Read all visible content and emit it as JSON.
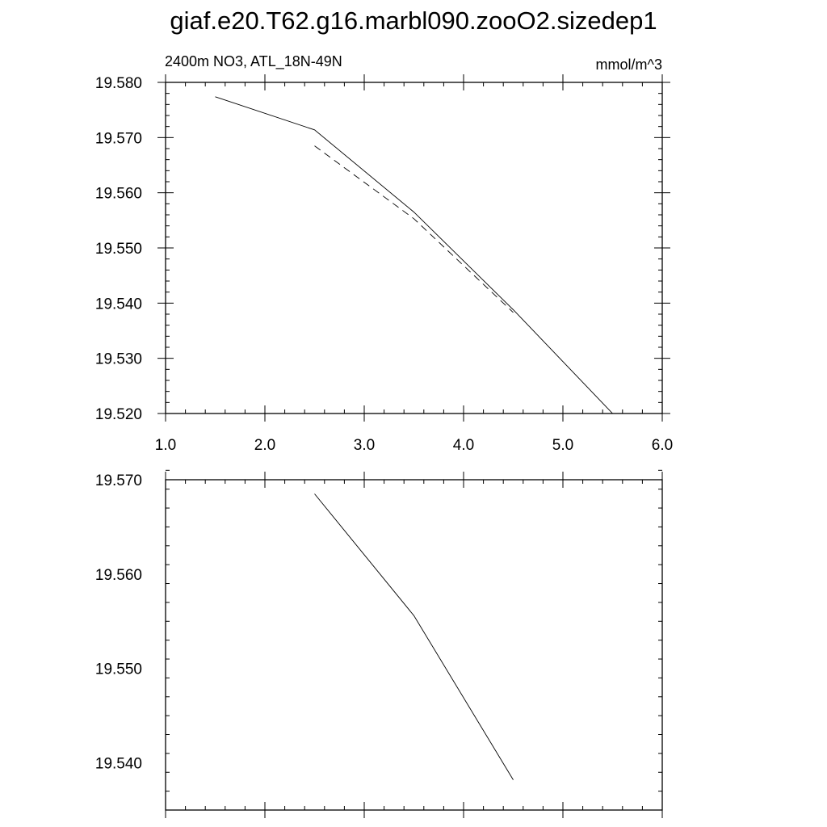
{
  "title": "giaf.e20.T62.g16.marbl090.zooO2.sizedep1",
  "chart_data": [
    {
      "type": "line",
      "left_label": "2400m NO3, ATL_18N-49N",
      "right_label": "mmol/m^3",
      "xlim": [
        1.0,
        6.0
      ],
      "ylim": [
        19.52,
        19.58
      ],
      "xticks": [
        "1.0",
        "2.0",
        "3.0",
        "4.0",
        "5.0",
        "6.0"
      ],
      "yticks": [
        "19.520",
        "19.530",
        "19.540",
        "19.550",
        "19.560",
        "19.570",
        "19.580"
      ],
      "series": [
        {
          "style": "solid",
          "x": [
            1.5,
            2.5,
            3.5,
            4.5,
            5.5
          ],
          "y": [
            19.5774,
            19.5714,
            19.5565,
            19.5388,
            19.52
          ]
        },
        {
          "style": "dashed",
          "x": [
            2.5,
            3.5,
            4.5
          ],
          "y": [
            19.5685,
            19.5553,
            19.5383
          ]
        }
      ]
    },
    {
      "type": "line",
      "xlim": [
        1.0,
        6.0
      ],
      "ylim": [
        19.535,
        19.57
      ],
      "xticks": [],
      "yticks": [
        "19.540",
        "19.550",
        "19.560",
        "19.570"
      ],
      "series": [
        {
          "style": "solid",
          "x": [
            2.5,
            3.5,
            4.5
          ],
          "y": [
            19.5685,
            19.5556,
            19.5382
          ]
        }
      ]
    }
  ]
}
